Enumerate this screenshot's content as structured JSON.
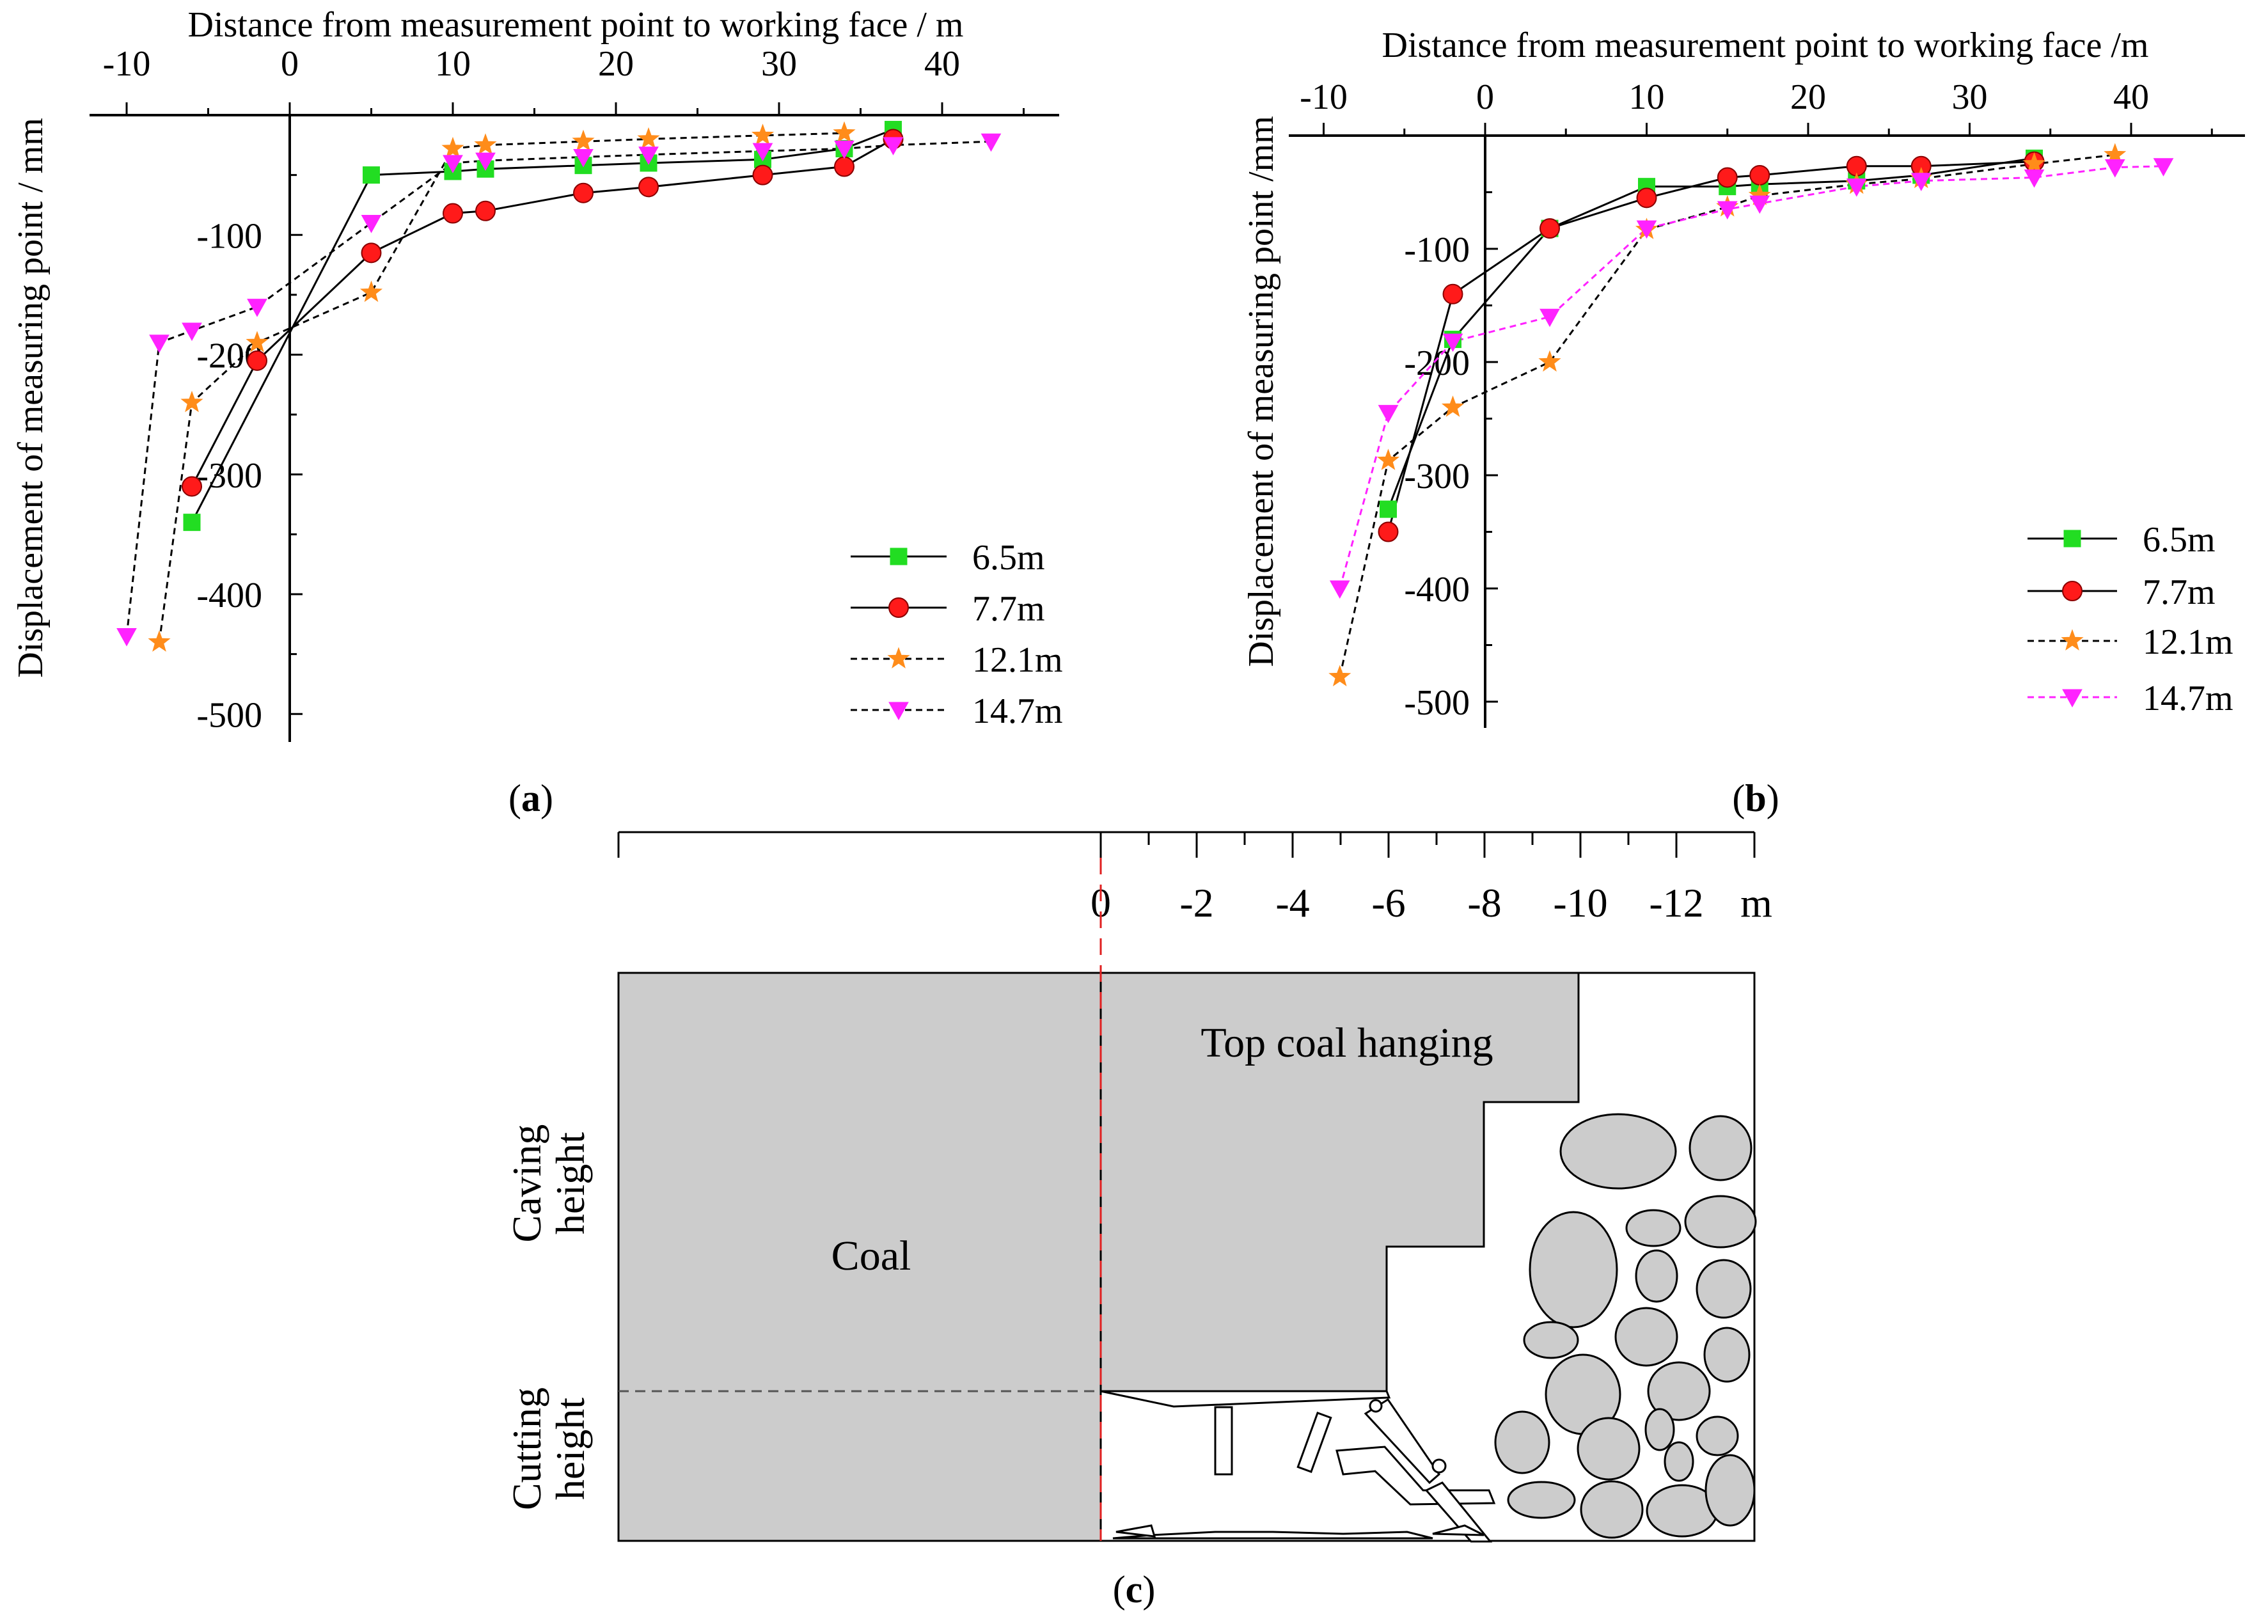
{
  "colors": {
    "green": "#22dd22",
    "red": "#ff1a1a",
    "orange": "#ff8c1a",
    "magenta": "#ff22ff",
    "black": "#000000",
    "coal": "#cccccc"
  },
  "chart_data": [
    {
      "id": "a",
      "type": "line",
      "panel_label": "(a)",
      "panel_letter": "a",
      "xlabel": "Distance from measurement point to working face / m",
      "ylabel": "Displacement of measuring point / mm",
      "xlim": [
        -12,
        47
      ],
      "ylim": [
        -525,
        0
      ],
      "x_ticks": [
        -10,
        0,
        10,
        20,
        30,
        40
      ],
      "y_ticks": [
        -100,
        -200,
        -300,
        -400,
        -500
      ],
      "series": [
        {
          "name": "6.5m",
          "marker": "square",
          "color": "#22dd22",
          "line_color": "#000000",
          "dashed": false,
          "x": [
            -6,
            5,
            10,
            12,
            18,
            22,
            29,
            34,
            37
          ],
          "y": [
            -340,
            -50,
            -47,
            -45,
            -42,
            -40,
            -37,
            -28,
            -12
          ]
        },
        {
          "name": "7.7m",
          "marker": "circle",
          "color": "#ff1a1a",
          "line_color": "#000000",
          "dashed": false,
          "x": [
            -6,
            -2,
            5,
            10,
            12,
            18,
            22,
            29,
            34,
            37
          ],
          "y": [
            -310,
            -205,
            -115,
            -82,
            -80,
            -65,
            -60,
            -50,
            -43,
            -20
          ]
        },
        {
          "name": "12.1m",
          "marker": "star",
          "color": "#ff8c1a",
          "line_color": "#000000",
          "dashed": true,
          "x": [
            -8,
            -6,
            -2,
            5,
            10,
            12,
            18,
            22,
            29,
            34
          ],
          "y": [
            -440,
            -240,
            -190,
            -148,
            -28,
            -25,
            -22,
            -20,
            -17,
            -15
          ]
        },
        {
          "name": "14.7m",
          "marker": "triangle-down",
          "color": "#ff22ff",
          "line_color": "#000000",
          "dashed": true,
          "x": [
            -10,
            -8,
            -6,
            -2,
            5,
            10,
            12,
            18,
            22,
            29,
            34,
            37,
            43
          ],
          "y": [
            -435,
            -190,
            -180,
            -160,
            -90,
            -40,
            -38,
            -35,
            -33,
            -30,
            -28,
            -25,
            -22
          ]
        }
      ]
    },
    {
      "id": "b",
      "type": "line",
      "panel_label": "(b)",
      "panel_letter": "b",
      "xlabel": "Distance from measurement point to working face /m",
      "ylabel": "Displacement of measuring point /mm",
      "xlim": [
        -11.5,
        47
      ],
      "ylim": [
        -535,
        0
      ],
      "x_ticks": [
        -10,
        0,
        10,
        20,
        30,
        40
      ],
      "y_ticks": [
        -100,
        -200,
        -300,
        -400,
        -500
      ],
      "series": [
        {
          "name": "6.5m",
          "marker": "square",
          "color": "#22dd22",
          "line_color": "#000000",
          "dashed": false,
          "x": [
            -6,
            -2,
            4,
            10,
            15,
            17,
            23,
            27,
            34
          ],
          "y": [
            -330,
            -180,
            -82,
            -45,
            -45,
            -43,
            -40,
            -35,
            -20
          ]
        },
        {
          "name": "7.7m",
          "marker": "circle",
          "color": "#ff1a1a",
          "line_color": "#000000",
          "dashed": false,
          "x": [
            -6,
            -2,
            4,
            10,
            15,
            17,
            23,
            27,
            34
          ],
          "y": [
            -350,
            -140,
            -82,
            -55,
            -37,
            -35,
            -27,
            -27,
            -23
          ]
        },
        {
          "name": "12.1m",
          "marker": "star",
          "color": "#ff8c1a",
          "line_color": "#000000",
          "dashed": true,
          "x": [
            -9,
            -6,
            -2,
            4,
            10,
            15,
            17,
            23,
            27,
            34,
            39
          ],
          "y": [
            -478,
            -287,
            -240,
            -200,
            -83,
            -63,
            -53,
            -43,
            -38,
            -25,
            -17
          ]
        },
        {
          "name": "14.7m",
          "marker": "triangle-down",
          "color": "#ff22ff",
          "line_color": "#ff22ff",
          "dashed": true,
          "x": [
            -9,
            -6,
            -2,
            4,
            10,
            15,
            17,
            23,
            27,
            34,
            39,
            42
          ],
          "y": [
            -400,
            -245,
            -182,
            -160,
            -82,
            -65,
            -60,
            -45,
            -40,
            -37,
            -28,
            -27
          ]
        }
      ]
    }
  ],
  "diagram_c": {
    "panel_label": "(c)",
    "panel_letter": "c",
    "scale_ticks": [
      "0",
      "-2",
      "-4",
      "-6",
      "-8",
      "-10",
      "-12",
      "m"
    ],
    "coal_label": "Coal",
    "top_coal_label": "Top coal hanging",
    "caving_label_1": "Caving",
    "caving_label_2": "height",
    "cutting_label_1": "Cutting",
    "cutting_label_2": "height"
  }
}
